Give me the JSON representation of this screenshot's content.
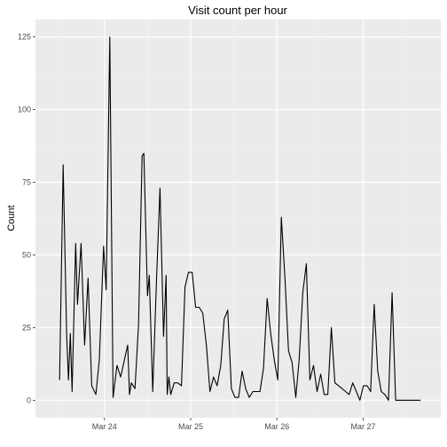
{
  "chart_data": {
    "type": "line",
    "title": "Visit count per hour",
    "xlabel": "",
    "ylabel": "Count",
    "xlim": [
      -0.3,
      4.4
    ],
    "ylim": [
      -6,
      131
    ],
    "x_ticks": [
      {
        "value": 0.5,
        "label": "Mar 24"
      },
      {
        "value": 1.5,
        "label": "Mar 25"
      },
      {
        "value": 2.5,
        "label": "Mar 26"
      },
      {
        "value": 3.5,
        "label": "Mar 27"
      }
    ],
    "y_ticks": [
      0,
      25,
      50,
      75,
      100,
      125
    ],
    "grid": true,
    "series": [
      {
        "x": [
          -0.02,
          0.021,
          0.062,
          0.083,
          0.104,
          0.125,
          0.166,
          0.187,
          0.229,
          0.27,
          0.31,
          0.352,
          0.4,
          0.44,
          0.49,
          0.52,
          0.562,
          0.6,
          0.645,
          0.687,
          0.77,
          0.79,
          0.812,
          0.854,
          0.895,
          0.936,
          0.957,
          0.999,
          1.019,
          1.06,
          1.102,
          1.144,
          1.185,
          1.215,
          1.227,
          1.247,
          1.268,
          1.309,
          1.35,
          1.393,
          1.434,
          1.474,
          1.517,
          1.557,
          1.599,
          1.64,
          1.682,
          1.723,
          1.765,
          1.806,
          1.848,
          1.889,
          1.93,
          1.972,
          2.013,
          2.055,
          2.096,
          2.137,
          2.179,
          2.221,
          2.262,
          2.303,
          2.344,
          2.386,
          2.427,
          2.469,
          2.51,
          2.551,
          2.593,
          2.634,
          2.675,
          2.718,
          2.758,
          2.8,
          2.841,
          2.882,
          2.924,
          2.965,
          3.007,
          3.048,
          3.09,
          3.131,
          3.172,
          3.214,
          3.255,
          3.296,
          3.338,
          3.379,
          3.421,
          3.462,
          3.503,
          3.545,
          3.586,
          3.628,
          3.669,
          3.71,
          3.752,
          3.793,
          3.835,
          3.877,
          3.918,
          3.959,
          4.0,
          4.042,
          4.083,
          4.124,
          4.166
        ],
        "y": [
          7,
          81,
          22,
          7,
          23,
          3,
          54,
          33,
          54,
          19,
          42,
          5,
          2,
          14,
          53,
          38,
          125,
          1,
          12,
          8,
          19,
          2,
          6,
          4,
          26,
          84,
          85,
          36,
          43,
          3,
          40,
          73,
          22,
          43,
          2,
          8,
          2,
          6,
          6,
          5,
          39,
          44,
          44,
          32,
          32,
          30,
          19,
          3,
          8,
          5,
          12,
          28,
          31,
          4,
          1,
          1,
          10,
          4,
          1,
          3,
          3,
          3,
          11,
          35,
          23,
          14,
          7,
          63,
          42,
          17,
          13,
          1,
          14,
          37,
          47,
          7,
          12,
          3,
          9,
          2,
          2,
          25,
          6,
          5,
          4,
          3,
          2,
          6,
          3,
          0,
          5,
          5,
          3,
          33,
          10,
          3,
          2,
          0,
          37,
          0,
          0,
          0,
          0,
          0,
          0,
          0,
          0
        ]
      }
    ]
  }
}
